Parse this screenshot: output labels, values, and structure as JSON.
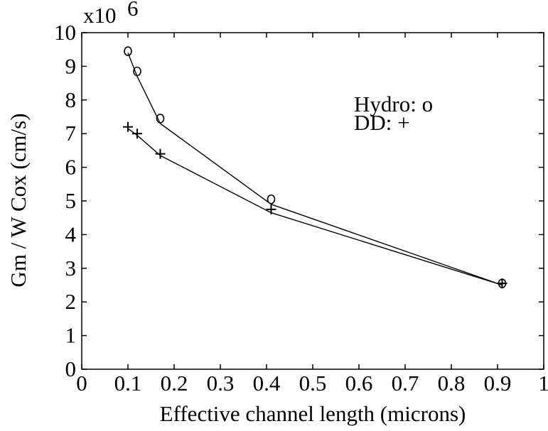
{
  "chart_data": {
    "type": "line",
    "title": "",
    "xlabel": "Effective channel length (microns)",
    "ylabel": "Gm / W Cox (cm/s)",
    "y_multiplier_label": "x10",
    "y_multiplier_exponent": "6",
    "xlim": [
      0,
      1
    ],
    "ylim": [
      0,
      10
    ],
    "xticks": [
      "0",
      "0.1",
      "0.2",
      "0.3",
      "0.4",
      "0.5",
      "0.6",
      "0.7",
      "0.8",
      "0.9",
      "1"
    ],
    "yticks": [
      "0",
      "1",
      "2",
      "3",
      "4",
      "5",
      "6",
      "7",
      "8",
      "9",
      "10"
    ],
    "grid": false,
    "legend": {
      "placement": "top-right",
      "entries": [
        "Hydro: o",
        "DD: +"
      ]
    },
    "series": [
      {
        "name": "Hydro",
        "marker": "o",
        "points": [
          {
            "x": 0.1,
            "y": 9.45
          },
          {
            "x": 0.12,
            "y": 8.85
          },
          {
            "x": 0.17,
            "y": 7.45
          },
          {
            "x": 0.41,
            "y": 5.05
          },
          {
            "x": 0.91,
            "y": 2.55
          }
        ],
        "fit": [
          {
            "x": 0.1,
            "y": 9.4
          },
          {
            "x": 0.12,
            "y": 8.7
          },
          {
            "x": 0.17,
            "y": 7.3
          },
          {
            "x": 0.41,
            "y": 4.9
          },
          {
            "x": 0.91,
            "y": 2.5
          }
        ]
      },
      {
        "name": "DD",
        "marker": "+",
        "points": [
          {
            "x": 0.1,
            "y": 7.2
          },
          {
            "x": 0.12,
            "y": 7.0
          },
          {
            "x": 0.17,
            "y": 6.4
          },
          {
            "x": 0.41,
            "y": 4.75
          },
          {
            "x": 0.91,
            "y": 2.55
          }
        ],
        "fit": [
          {
            "x": 0.1,
            "y": 7.15
          },
          {
            "x": 0.12,
            "y": 6.95
          },
          {
            "x": 0.17,
            "y": 6.35
          },
          {
            "x": 0.41,
            "y": 4.65
          },
          {
            "x": 0.91,
            "y": 2.5
          }
        ]
      }
    ]
  }
}
